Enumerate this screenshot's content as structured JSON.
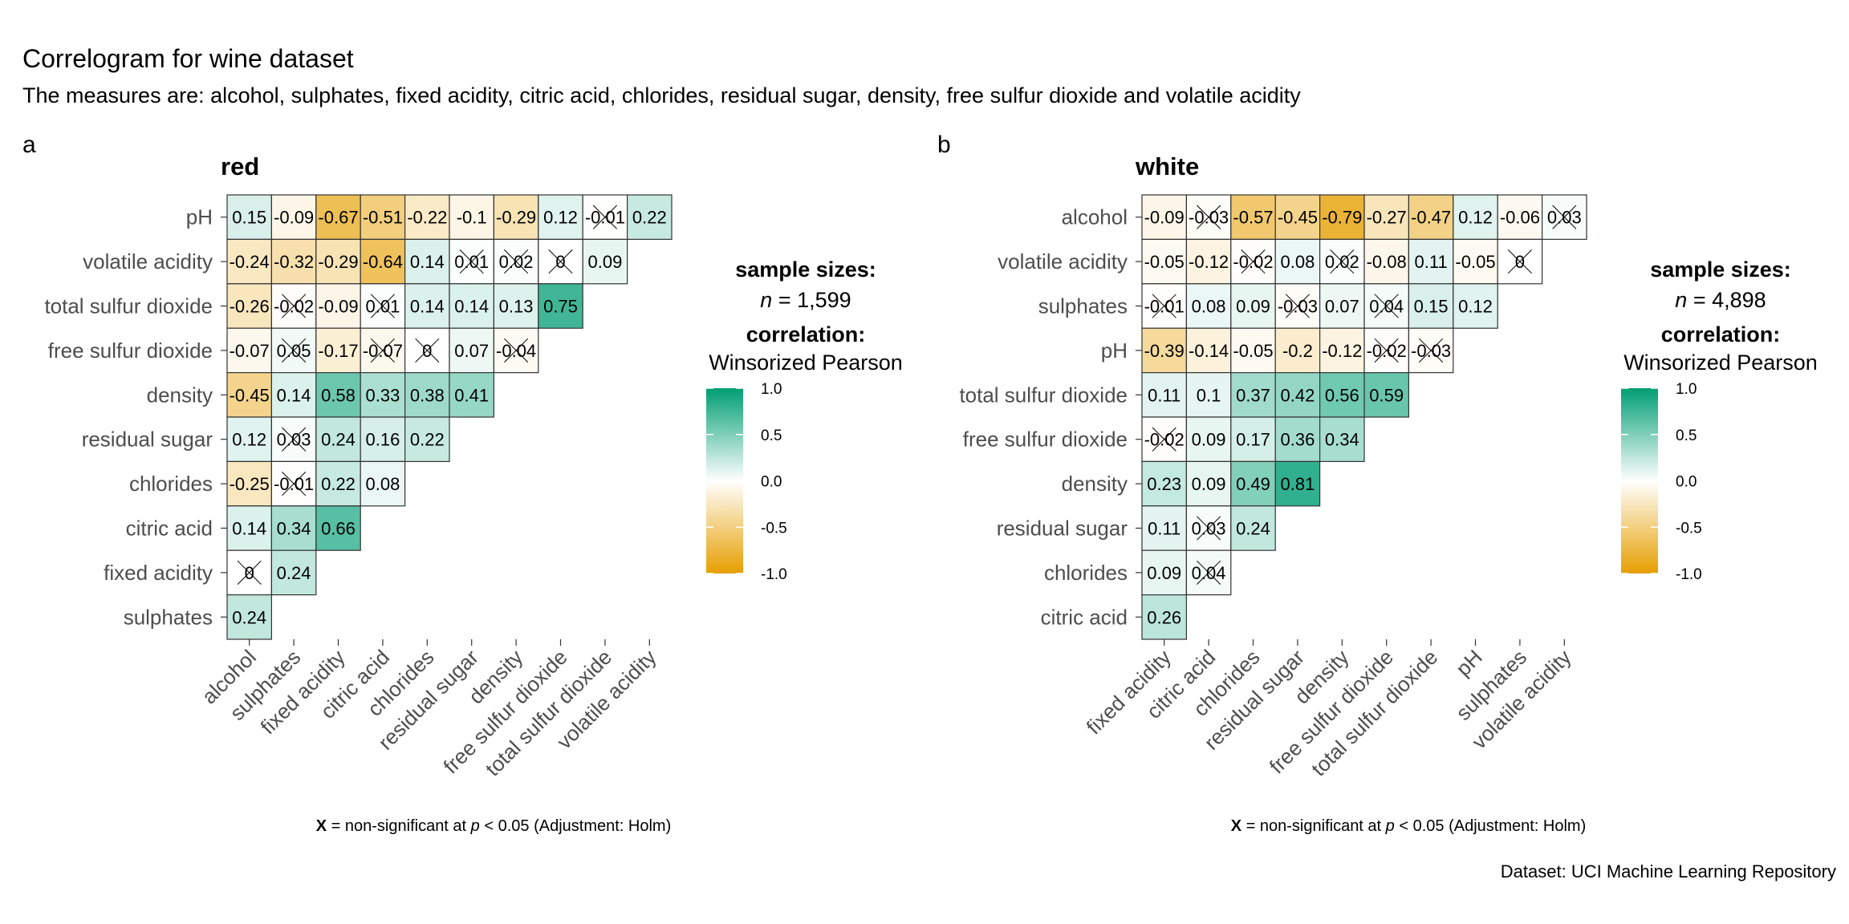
{
  "title": "Correlogram for wine dataset",
  "subtitle": "The measures are: alcohol, sulphates, fixed acidity, citric acid, chlorides, residual sugar, density, free sulfur dioxide and volatile acidity",
  "caption": "Dataset: UCI Machine Learning Repository",
  "colors": {
    "negative": "#E69F00",
    "zero": "#FFFFFF",
    "positive": "#009E73",
    "grid": "#333333",
    "label": "#4D4D4D"
  },
  "chart_data": [
    {
      "type": "heatmap",
      "tag": "a",
      "title": "red",
      "legend": {
        "sample_label": "sample sizes:",
        "n_label": "n",
        "n_value": "1,599",
        "corr_label": "correlation:",
        "corr_method": "Winsorized Pearson",
        "ticks": [
          "1.0",
          "0.5",
          "0.0",
          "-0.5",
          "-1.0"
        ],
        "range": [
          -1,
          1
        ]
      },
      "footnote": {
        "symbol": "X",
        "text1": " = non-significant at ",
        "p": "p",
        "text2": " < 0.05 (Adjustment: Holm)"
      },
      "row_labels": [
        "pH",
        "volatile acidity",
        "total sulfur dioxide",
        "free sulfur dioxide",
        "density",
        "residual sugar",
        "chlorides",
        "citric acid",
        "fixed acidity",
        "sulphates"
      ],
      "col_labels": [
        "alcohol",
        "sulphates",
        "fixed acidity",
        "citric acid",
        "chlorides",
        "residual sugar",
        "density",
        "free sulfur dioxide",
        "total sulfur dioxide",
        "volatile acidity"
      ],
      "values": [
        [
          "0.15",
          "-0.09",
          "-0.67",
          "-0.51",
          "-0.22",
          "-0.1",
          "-0.29",
          "0.12",
          "-0.01",
          "0.22"
        ],
        [
          "-0.24",
          "-0.32",
          "-0.29",
          "-0.64",
          "0.14",
          "0.01",
          "0.02",
          "0",
          "0.09"
        ],
        [
          "-0.26",
          "-0.02",
          "-0.09",
          "0.01",
          "0.14",
          "0.14",
          "0.13",
          "0.75"
        ],
        [
          "-0.07",
          "0.05",
          "-0.17",
          "-0.07",
          "0",
          "0.07",
          "-0.04"
        ],
        [
          "-0.45",
          "0.14",
          "0.58",
          "0.33",
          "0.38",
          "0.41"
        ],
        [
          "0.12",
          "0.03",
          "0.24",
          "0.16",
          "0.22"
        ],
        [
          "-0.25",
          "-0.01",
          "0.22",
          "0.08"
        ],
        [
          "0.14",
          "0.34",
          "0.66"
        ],
        [
          "0",
          "0.24"
        ],
        [
          "0.24"
        ]
      ],
      "nonsignificant": [
        [
          false,
          false,
          false,
          false,
          false,
          false,
          false,
          false,
          true,
          false
        ],
        [
          false,
          false,
          false,
          false,
          false,
          true,
          true,
          true,
          false
        ],
        [
          false,
          true,
          false,
          true,
          false,
          false,
          false,
          false
        ],
        [
          false,
          true,
          false,
          true,
          true,
          false,
          true
        ],
        [
          false,
          false,
          false,
          false,
          false,
          false
        ],
        [
          false,
          true,
          false,
          false,
          false
        ],
        [
          false,
          true,
          false,
          false
        ],
        [
          false,
          false,
          false
        ],
        [
          true,
          false
        ],
        [
          false
        ]
      ]
    },
    {
      "type": "heatmap",
      "tag": "b",
      "title": "white",
      "legend": {
        "sample_label": "sample sizes:",
        "n_label": "n",
        "n_value": "4,898",
        "corr_label": "correlation:",
        "corr_method": "Winsorized Pearson",
        "ticks": [
          "1.0",
          "0.5",
          "0.0",
          "-0.5",
          "-1.0"
        ],
        "range": [
          -1,
          1
        ]
      },
      "footnote": {
        "symbol": "X",
        "text1": " = non-significant at ",
        "p": "p",
        "text2": " < 0.05 (Adjustment: Holm)"
      },
      "row_labels": [
        "alcohol",
        "volatile acidity",
        "sulphates",
        "pH",
        "total sulfur dioxide",
        "free sulfur dioxide",
        "density",
        "residual sugar",
        "chlorides",
        "citric acid"
      ],
      "col_labels": [
        "fixed acidity",
        "citric acid",
        "chlorides",
        "residual sugar",
        "density",
        "free sulfur dioxide",
        "total sulfur dioxide",
        "pH",
        "sulphates",
        "volatile acidity"
      ],
      "values": [
        [
          "-0.09",
          "-0.03",
          "-0.57",
          "-0.45",
          "-0.79",
          "-0.27",
          "-0.47",
          "0.12",
          "-0.06",
          "0.03"
        ],
        [
          "-0.05",
          "-0.12",
          "-0.02",
          "0.08",
          "0.02",
          "-0.08",
          "0.11",
          "-0.05",
          "0"
        ],
        [
          "-0.01",
          "0.08",
          "0.09",
          "-0.03",
          "0.07",
          "0.04",
          "0.15",
          "0.12"
        ],
        [
          "-0.39",
          "-0.14",
          "-0.05",
          "-0.2",
          "-0.12",
          "-0.02",
          "-0.03"
        ],
        [
          "0.11",
          "0.1",
          "0.37",
          "0.42",
          "0.56",
          "0.59"
        ],
        [
          "-0.02",
          "0.09",
          "0.17",
          "0.36",
          "0.34"
        ],
        [
          "0.23",
          "0.09",
          "0.49",
          "0.81"
        ],
        [
          "0.11",
          "0.03",
          "0.24"
        ],
        [
          "0.09",
          "0.04"
        ],
        [
          "0.26"
        ]
      ],
      "nonsignificant": [
        [
          false,
          true,
          false,
          false,
          false,
          false,
          false,
          false,
          false,
          true
        ],
        [
          false,
          false,
          true,
          false,
          true,
          false,
          false,
          false,
          true
        ],
        [
          true,
          false,
          false,
          true,
          false,
          true,
          false,
          false
        ],
        [
          false,
          false,
          false,
          false,
          false,
          true,
          true
        ],
        [
          false,
          false,
          false,
          false,
          false,
          false
        ],
        [
          true,
          false,
          false,
          false,
          false
        ],
        [
          false,
          false,
          false,
          false
        ],
        [
          false,
          true,
          false
        ],
        [
          false,
          true
        ],
        [
          false
        ]
      ]
    }
  ]
}
